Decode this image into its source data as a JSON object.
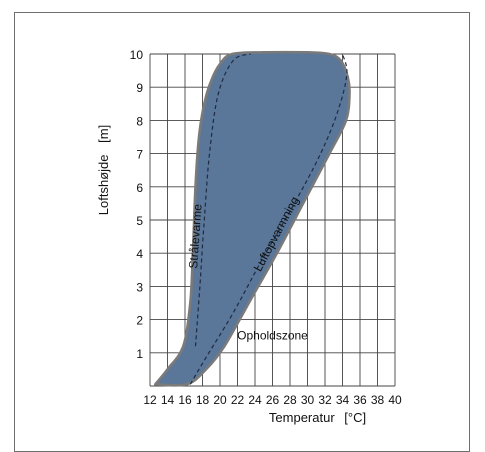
{
  "chart_data": {
    "type": "area",
    "xlabel": "Temperatur",
    "xunit": "[°C]",
    "ylabel": "Loftshøjde",
    "yunit": "[m]",
    "xlim": [
      12,
      40
    ],
    "ylim": [
      0,
      10
    ],
    "x_ticks": [
      12,
      14,
      16,
      18,
      20,
      22,
      24,
      26,
      28,
      30,
      32,
      34,
      36,
      38,
      40
    ],
    "y_ticks": [
      1,
      2,
      3,
      4,
      5,
      6,
      7,
      8,
      9,
      10
    ],
    "grid": true,
    "fill_color": "#5a7699",
    "outline_color": "#7a7a7a",
    "region": [
      [
        12.6,
        0.05
      ],
      [
        14.0,
        0.5
      ],
      [
        15.8,
        1.2
      ],
      [
        16.6,
        2.5
      ],
      [
        16.9,
        4.0
      ],
      [
        17.2,
        6.0
      ],
      [
        17.6,
        7.5
      ],
      [
        18.2,
        8.5
      ],
      [
        19.0,
        9.2
      ],
      [
        20.0,
        9.7
      ],
      [
        21.4,
        10.0
      ],
      [
        25.0,
        10.05
      ],
      [
        30.0,
        10.05
      ],
      [
        32.5,
        10.0
      ],
      [
        33.8,
        9.8
      ],
      [
        34.6,
        9.3
      ],
      [
        34.8,
        8.8
      ],
      [
        34.4,
        8.0
      ],
      [
        32.5,
        7.0
      ],
      [
        29.5,
        5.5
      ],
      [
        26.5,
        4.0
      ],
      [
        23.5,
        2.6
      ],
      [
        20.5,
        1.2
      ],
      [
        18.4,
        0.5
      ],
      [
        16.2,
        0.05
      ]
    ],
    "annotations": [
      {
        "text": "Strålevarme",
        "curve": "dashed",
        "points": [
          [
            17.2,
            1.2
          ],
          [
            17.7,
            3.0
          ],
          [
            18.2,
            5.0
          ],
          [
            18.8,
            7.0
          ],
          [
            19.8,
            8.8
          ],
          [
            21.5,
            9.8
          ],
          [
            23.5,
            10.0
          ]
        ]
      },
      {
        "text": "Luftopvarmning",
        "curve": "dashed",
        "points": [
          [
            16.6,
            0.05
          ],
          [
            18.5,
            0.9
          ],
          [
            21.5,
            2.2
          ],
          [
            25.0,
            3.9
          ],
          [
            28.5,
            5.5
          ],
          [
            31.5,
            7.0
          ],
          [
            33.5,
            8.3
          ],
          [
            34.5,
            9.4
          ],
          [
            34.0,
            10.0
          ]
        ]
      },
      {
        "text": "Opholdszone",
        "at": [
          26.0,
          1.4
        ]
      }
    ]
  }
}
